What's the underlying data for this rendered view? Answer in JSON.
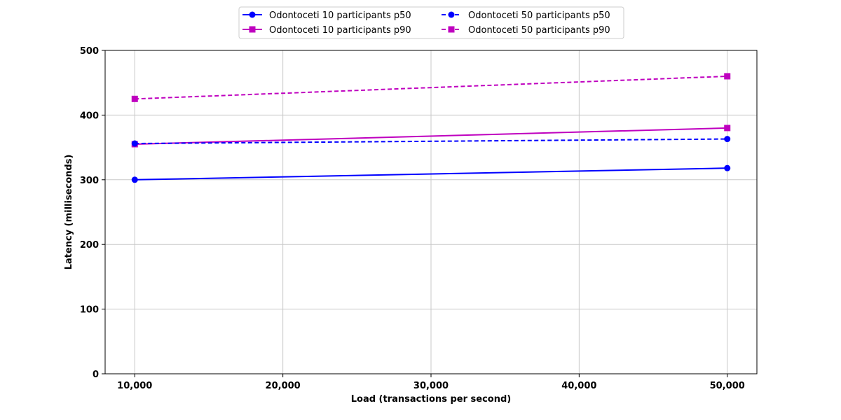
{
  "chart_data": {
    "type": "line",
    "xlabel": "Load (transactions per second)",
    "ylabel": "Latency (milliseconds)",
    "xlim": [
      8000,
      52000
    ],
    "ylim": [
      0,
      500
    ],
    "x_ticks": [
      10000,
      20000,
      30000,
      40000,
      50000
    ],
    "x_tick_labels": [
      "10,000",
      "20,000",
      "30,000",
      "40,000",
      "50,000"
    ],
    "y_ticks": [
      0,
      100,
      200,
      300,
      400,
      500
    ],
    "y_tick_labels": [
      "0",
      "100",
      "200",
      "300",
      "400",
      "500"
    ],
    "grid": true,
    "legend_position": "top-center",
    "series": [
      {
        "name": "Odontoceti 10 participants p50",
        "x": [
          10000,
          50000
        ],
        "y": [
          300,
          318
        ],
        "color": "#0000ff",
        "marker": "circle",
        "line_style": "solid"
      },
      {
        "name": "Odontoceti 10 participants p90",
        "x": [
          10000,
          50000
        ],
        "y": [
          355,
          380
        ],
        "color": "#bf00bf",
        "marker": "square",
        "line_style": "solid"
      },
      {
        "name": "Odontoceti 50 participants p50",
        "x": [
          10000,
          50000
        ],
        "y": [
          356,
          363
        ],
        "color": "#0000ff",
        "marker": "circle",
        "line_style": "dashed"
      },
      {
        "name": "Odontoceti 50 participants p90",
        "x": [
          10000,
          50000
        ],
        "y": [
          425,
          460
        ],
        "color": "#bf00bf",
        "marker": "square",
        "line_style": "dashed"
      }
    ]
  }
}
